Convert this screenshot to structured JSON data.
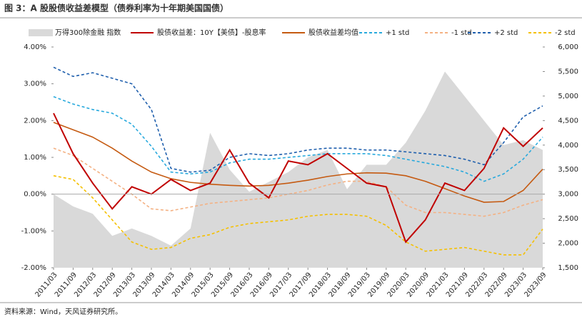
{
  "chart_data": {
    "type": "line",
    "title": "图 3：A 股股债收益差模型（债券利率为十年期美国国债）",
    "source": "资料来源：Wind，天风证券研究所。",
    "categories": [
      "2011/03",
      "2011/09",
      "2012/03",
      "2012/09",
      "2013/03",
      "2013/09",
      "2014/03",
      "2014/09",
      "2015/03",
      "2015/09",
      "2016/03",
      "2016/09",
      "2017/03",
      "2017/09",
      "2018/03",
      "2018/09",
      "2019/03",
      "2019/09",
      "2020/03",
      "2020/09",
      "2021/03",
      "2021/09",
      "2022/03",
      "2022/09",
      "2023/03",
      "2023/09"
    ],
    "series": [
      {
        "name": "万得300除金融 指数",
        "type": "area",
        "axis": "y2",
        "color": "#d9d9d9",
        "values": [
          3000,
          2750,
          2600,
          2150,
          2300,
          2150,
          1950,
          2300,
          4250,
          3500,
          3050,
          3250,
          3450,
          3750,
          3900,
          3100,
          3600,
          3600,
          4050,
          4700,
          5500,
          5000,
          4500,
          4000,
          4100,
          3900
        ]
      },
      {
        "name": "股债收益差：10Y【美债】-股息率",
        "type": "line",
        "color": "#c00000",
        "values": [
          2.2,
          1.1,
          0.3,
          -0.4,
          0.2,
          0.0,
          0.4,
          0.1,
          0.3,
          1.2,
          0.3,
          -0.1,
          0.9,
          0.8,
          1.1,
          0.7,
          0.3,
          0.2,
          -1.3,
          -0.7,
          0.3,
          0.1,
          0.7,
          1.8,
          1.3,
          1.8
        ]
      },
      {
        "name": "股债收益差均值",
        "type": "line",
        "color": "#c55a11",
        "values": [
          1.95,
          1.75,
          1.55,
          1.25,
          0.9,
          0.6,
          0.42,
          0.32,
          0.27,
          0.24,
          0.22,
          0.24,
          0.3,
          0.38,
          0.48,
          0.55,
          0.58,
          0.57,
          0.5,
          0.35,
          0.15,
          -0.05,
          -0.22,
          -0.2,
          0.1,
          0.68
        ]
      },
      {
        "name": "+1 std",
        "type": "dashed",
        "color": "#27a9dd",
        "values": [
          2.65,
          2.45,
          2.3,
          2.2,
          1.9,
          1.3,
          0.6,
          0.55,
          0.6,
          0.85,
          0.95,
          0.95,
          1.0,
          1.05,
          1.1,
          1.1,
          1.1,
          1.05,
          0.95,
          0.85,
          0.75,
          0.6,
          0.35,
          0.55,
          0.95,
          1.55
        ]
      },
      {
        "name": "-1 std",
        "type": "dashed",
        "color": "#f4b183",
        "values": [
          1.25,
          1.05,
          0.7,
          0.35,
          0.0,
          -0.4,
          -0.45,
          -0.35,
          -0.25,
          -0.2,
          -0.15,
          -0.1,
          0.0,
          0.1,
          0.25,
          0.35,
          0.35,
          0.2,
          -0.3,
          -0.5,
          -0.5,
          -0.55,
          -0.6,
          -0.5,
          -0.3,
          -0.15
        ]
      },
      {
        "name": "+2 std",
        "type": "dashed",
        "color": "#1f5fad",
        "values": [
          3.45,
          3.2,
          3.3,
          3.15,
          3.0,
          2.3,
          0.7,
          0.6,
          0.65,
          1.0,
          1.1,
          1.05,
          1.1,
          1.2,
          1.25,
          1.25,
          1.2,
          1.2,
          1.15,
          1.1,
          1.05,
          0.95,
          0.8,
          1.4,
          2.1,
          2.4
        ]
      },
      {
        "name": "-2 std",
        "type": "dashed",
        "color": "#f5c000",
        "values": [
          0.5,
          0.4,
          -0.1,
          -0.7,
          -1.3,
          -1.5,
          -1.45,
          -1.2,
          -1.1,
          -0.9,
          -0.8,
          -0.75,
          -0.7,
          -0.6,
          -0.55,
          -0.55,
          -0.6,
          -0.85,
          -1.3,
          -1.55,
          -1.5,
          -1.45,
          -1.55,
          -1.65,
          -1.65,
          -0.95
        ]
      }
    ],
    "ylim": [
      -2,
      4
    ],
    "yticks": [
      {
        "value": -2,
        "label": "-2.00%"
      },
      {
        "value": -1,
        "label": "-1.00%"
      },
      {
        "value": 0,
        "label": "0.00%"
      },
      {
        "value": 1,
        "label": "1.00%"
      },
      {
        "value": 2,
        "label": "2.00%"
      },
      {
        "value": 3,
        "label": "3.00%"
      },
      {
        "value": 4,
        "label": "4.00%"
      }
    ],
    "y2lim": [
      1500,
      6000
    ],
    "y2ticks": [
      {
        "value": 1500,
        "label": "1,500"
      },
      {
        "value": 2000,
        "label": "2,000"
      },
      {
        "value": 2500,
        "label": "2,500"
      },
      {
        "value": 3000,
        "label": "3,000"
      },
      {
        "value": 3500,
        "label": "3,500"
      },
      {
        "value": 4000,
        "label": "4,000"
      },
      {
        "value": 4500,
        "label": "4,500"
      },
      {
        "value": 5000,
        "label": "5,000"
      },
      {
        "value": 5500,
        "label": "5,500"
      },
      {
        "value": 6000,
        "label": "6,000"
      }
    ]
  }
}
